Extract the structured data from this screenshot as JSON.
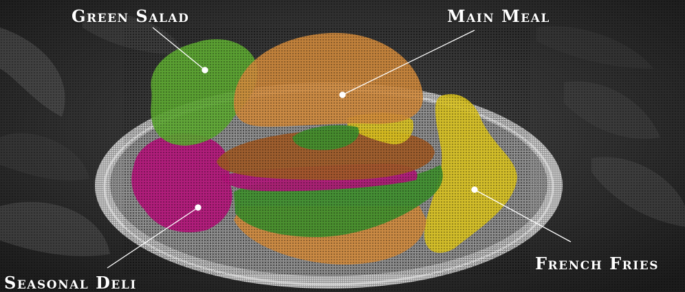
{
  "labels": {
    "green_salad": "Green Salad",
    "main_meal": "Main Meal",
    "french_fries": "French Fries",
    "seasonal_deli": "Seasonal Deli"
  },
  "colors": {
    "salad": "#5da832",
    "main": "#d08a3c",
    "fries": "#d9c21f",
    "deli": "#b3157a",
    "lettuce": "#3f8f2e",
    "patty": "#a05a26",
    "label": "#ffffff"
  }
}
